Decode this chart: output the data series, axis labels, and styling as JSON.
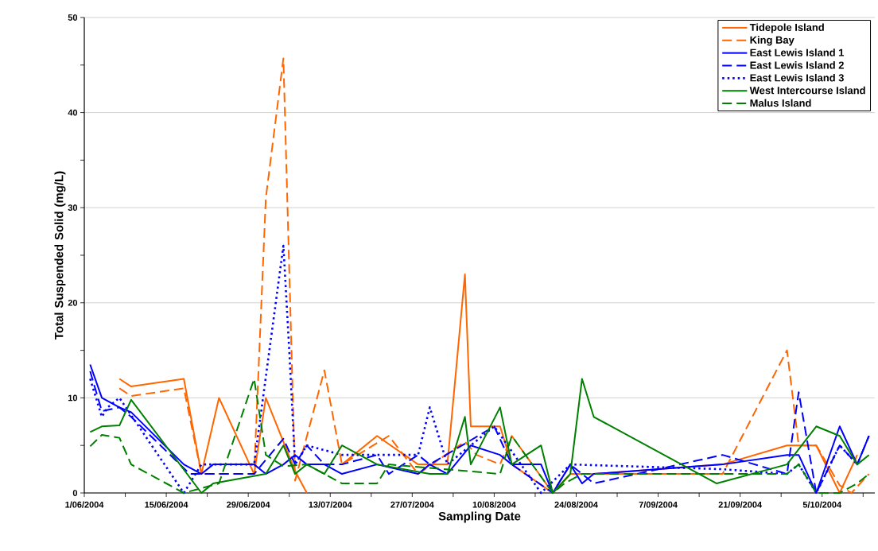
{
  "chart_data": {
    "type": "line",
    "xlabel": "Sampling Date",
    "ylabel": "Total Suspended Solid (mg/L)",
    "xlim": [
      "2004-06-01",
      "2004-10-14"
    ],
    "ylim": [
      0,
      50
    ],
    "xticks": [
      {
        "value": "2004-06-01",
        "label": "1/06/2004"
      },
      {
        "value": "2004-06-08",
        "label": null
      },
      {
        "value": "2004-06-15",
        "label": "15/06/2004"
      },
      {
        "value": "2004-06-22",
        "label": null
      },
      {
        "value": "2004-06-29",
        "label": "29/06/2004"
      },
      {
        "value": "2004-07-06",
        "label": null
      },
      {
        "value": "2004-07-13",
        "label": "13/07/2004"
      },
      {
        "value": "2004-07-20",
        "label": null
      },
      {
        "value": "2004-07-27",
        "label": "27/07/2004"
      },
      {
        "value": "2004-08-03",
        "label": null
      },
      {
        "value": "2004-08-10",
        "label": "10/08/2004"
      },
      {
        "value": "2004-08-17",
        "label": null
      },
      {
        "value": "2004-08-24",
        "label": "24/08/2004"
      },
      {
        "value": "2004-08-31",
        "label": null
      },
      {
        "value": "2004-09-07",
        "label": "7/09/2004"
      },
      {
        "value": "2004-09-14",
        "label": null
      },
      {
        "value": "2004-09-21",
        "label": "21/09/2004"
      },
      {
        "value": "2004-09-28",
        "label": null
      },
      {
        "value": "2004-10-05",
        "label": "5/10/2004"
      },
      {
        "value": "2004-10-12",
        "label": null
      }
    ],
    "yticks": [
      0,
      {
        "value": 5,
        "label": null
      },
      10,
      {
        "value": 15,
        "label": null
      },
      20,
      {
        "value": 25,
        "label": null
      },
      30,
      {
        "value": 35,
        "label": null
      },
      40,
      {
        "value": 45,
        "label": null
      },
      50
    ],
    "grid": "y",
    "legend": "top right",
    "series": [
      {
        "name": "Tidepole Island",
        "color": "#ff6600",
        "line_style": "solid",
        "x": [
          "2004-06-07",
          "2004-06-09",
          "2004-06-18",
          "2004-06-21",
          "2004-06-24",
          "2004-06-30",
          "2004-07-02",
          "2004-07-07",
          "2004-07-09",
          "2004-07-12",
          "2004-07-15",
          "2004-07-21",
          "2004-07-28",
          "2004-07-30",
          "2004-08-02",
          "2004-08-05",
          "2004-08-06",
          "2004-08-11",
          "2004-08-13",
          "2004-08-20",
          "2004-08-23",
          "2004-08-27",
          "2004-09-18",
          "2004-09-29",
          "2004-10-04",
          "2004-10-08",
          "2004-10-11"
        ],
        "values": [
          12,
          11.2,
          12,
          2,
          10,
          2,
          10,
          2.3,
          0,
          null,
          3,
          6,
          3,
          3,
          3,
          23,
          7,
          7,
          3,
          0,
          2,
          2,
          3,
          5,
          5,
          0,
          4
        ]
      },
      {
        "name": "King Bay",
        "color": "#ff6600",
        "line_style": "dashed",
        "x": [
          "2004-06-07",
          "2004-06-09",
          "2004-06-18",
          "2004-06-21",
          "2004-06-30",
          "2004-07-02",
          "2004-07-05",
          "2004-07-07",
          "2004-07-12",
          "2004-07-15",
          "2004-07-23",
          "2004-07-28",
          "2004-08-05",
          "2004-08-07",
          "2004-08-11",
          "2004-08-13",
          "2004-08-20",
          "2004-08-23",
          "2004-09-18",
          "2004-09-29",
          "2004-10-01",
          "2004-10-04",
          "2004-10-08",
          "2004-10-10",
          "2004-10-13"
        ],
        "values": [
          11,
          10.2,
          11,
          2,
          2,
          31,
          45.7,
          1.3,
          12.9,
          3,
          6,
          2,
          5.4,
          4,
          3,
          6,
          0,
          2,
          2,
          15,
          5,
          5,
          0.8,
          0,
          2
        ]
      },
      {
        "name": "East Lewis Island 1",
        "color": "#0000ff",
        "line_style": "solid",
        "x": [
          "2004-06-02",
          "2004-06-04",
          "2004-06-07",
          "2004-06-09",
          "2004-06-18",
          "2004-06-21",
          "2004-06-23",
          "2004-06-30",
          "2004-07-02",
          "2004-07-05",
          "2004-07-07",
          "2004-07-09",
          "2004-07-12",
          "2004-07-15",
          "2004-07-21",
          "2004-07-28",
          "2004-07-30",
          "2004-08-02",
          "2004-08-06",
          "2004-08-11",
          "2004-08-13",
          "2004-08-18",
          "2004-08-20",
          "2004-08-23",
          "2004-08-25",
          "2004-08-27",
          "2004-09-18",
          "2004-09-29",
          "2004-10-01",
          "2004-10-04",
          "2004-10-08",
          "2004-10-11",
          "2004-10-13"
        ],
        "values": [
          13.5,
          10,
          9,
          8.5,
          3,
          2,
          3,
          3,
          2,
          3,
          4,
          3,
          3,
          2,
          3,
          2,
          3,
          2,
          5,
          4,
          3,
          3,
          0,
          3,
          1,
          2,
          3,
          4,
          4,
          0,
          7,
          3,
          6
        ]
      },
      {
        "name": "East Lewis Island 2",
        "color": "#0000ff",
        "line_style": "dashed",
        "x": [
          "2004-06-02",
          "2004-06-04",
          "2004-06-07",
          "2004-06-09",
          "2004-06-19",
          "2004-06-30",
          "2004-07-05",
          "2004-07-07",
          "2004-07-09",
          "2004-07-12",
          "2004-07-15",
          "2004-07-21",
          "2004-07-23",
          "2004-07-28",
          "2004-07-30",
          "2004-08-10",
          "2004-08-13",
          "2004-08-20",
          "2004-08-23",
          "2004-08-27",
          "2004-09-18",
          "2004-09-29",
          "2004-10-01",
          "2004-10-04",
          "2004-10-08",
          "2004-10-11",
          "2004-10-13"
        ],
        "values": [
          12.8,
          8.6,
          9,
          8,
          2,
          2,
          5.7,
          3,
          5,
          3,
          3,
          4,
          2,
          4,
          3,
          7,
          3,
          0,
          3,
          1,
          4,
          2,
          10.6,
          0,
          5,
          3,
          6
        ]
      },
      {
        "name": "East Lewis Island 3",
        "color": "#0000ff",
        "line_style": "dotted",
        "x": [
          "2004-06-02",
          "2004-06-04",
          "2004-06-05",
          "2004-06-07",
          "2004-06-18",
          "2004-06-21",
          "2004-06-30",
          "2004-07-05",
          "2004-07-06",
          "2004-07-07",
          "2004-07-09",
          "2004-07-15",
          "2004-07-28",
          "2004-07-30",
          "2004-08-02",
          "2004-08-10",
          "2004-08-18",
          "2004-08-23",
          "2004-09-18",
          "2004-09-29",
          "2004-10-01",
          "2004-10-04",
          "2004-10-08",
          "2004-10-11"
        ],
        "values": [
          12,
          8,
          9,
          10,
          0,
          3,
          3,
          26,
          15,
          3,
          5,
          4,
          4,
          9,
          3,
          7,
          0,
          3,
          2.5,
          2,
          3,
          0,
          5,
          3
        ]
      },
      {
        "name": "West Intercourse Island",
        "color": "#008000",
        "line_style": "solid",
        "x": [
          "2004-06-02",
          "2004-06-04",
          "2004-06-07",
          "2004-06-09",
          "2004-06-21",
          "2004-06-23",
          "2004-07-02",
          "2004-07-05",
          "2004-07-07",
          "2004-07-09",
          "2004-07-12",
          "2004-07-15",
          "2004-07-21",
          "2004-07-30",
          "2004-08-02",
          "2004-08-05",
          "2004-08-06",
          "2004-08-11",
          "2004-08-13",
          "2004-08-18",
          "2004-08-20",
          "2004-08-23",
          "2004-08-25",
          "2004-08-27",
          "2004-09-17",
          "2004-09-29",
          "2004-10-04",
          "2004-10-08",
          "2004-10-11",
          "2004-10-13"
        ],
        "values": [
          6.4,
          7,
          7.1,
          9.8,
          0,
          1,
          2,
          5,
          2,
          3,
          2,
          5,
          3,
          2,
          2,
          8,
          3,
          9,
          3,
          5,
          0,
          2,
          12,
          8,
          1,
          3,
          7,
          6,
          3,
          4
        ]
      },
      {
        "name": "Malus Island",
        "color": "#008000",
        "line_style": "dashed",
        "x": [
          "2004-06-02",
          "2004-06-04",
          "2004-06-07",
          "2004-06-09",
          "2004-06-18",
          "2004-06-24",
          "2004-06-30",
          "2004-07-02",
          "2004-07-05",
          "2004-07-09",
          "2004-07-15",
          "2004-07-21",
          "2004-07-23",
          "2004-08-11",
          "2004-08-13",
          "2004-08-20",
          "2004-08-22",
          "2004-08-25",
          "2004-09-29",
          "2004-10-01",
          "2004-10-04",
          "2004-10-08",
          "2004-10-11",
          "2004-10-13"
        ],
        "values": [
          4.9,
          6.1,
          5.8,
          3,
          0,
          1,
          12,
          4,
          2.8,
          3,
          1,
          1,
          3,
          2,
          6,
          0,
          1,
          2,
          2,
          3,
          0,
          0,
          1,
          2
        ]
      }
    ]
  }
}
